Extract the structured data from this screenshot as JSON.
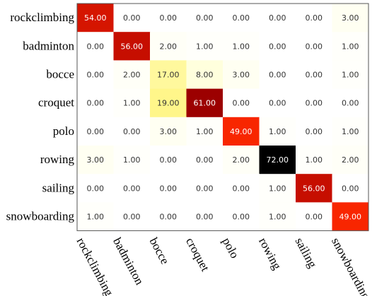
{
  "chart_data": {
    "type": "heatmap",
    "rows": [
      "rockclimbing",
      "badminton",
      "bocce",
      "croquet",
      "polo",
      "rowing",
      "sailing",
      "snowboarding"
    ],
    "columns": [
      "rockclimbing",
      "badminton",
      "bocce",
      "croquet",
      "polo",
      "rowing",
      "sailing",
      "snowboarding"
    ],
    "values": [
      [
        54,
        0,
        0,
        0,
        0,
        0,
        0,
        3
      ],
      [
        0,
        56,
        2,
        1,
        1,
        0,
        0,
        1
      ],
      [
        0,
        2,
        17,
        8,
        3,
        0,
        0,
        1
      ],
      [
        0,
        1,
        19,
        61,
        0,
        0,
        0,
        0
      ],
      [
        0,
        0,
        3,
        1,
        49,
        1,
        0,
        1
      ],
      [
        3,
        1,
        0,
        0,
        2,
        72,
        1,
        2
      ],
      [
        0,
        0,
        0,
        0,
        0,
        1,
        56,
        0
      ],
      [
        1,
        0,
        0,
        0,
        0,
        1,
        0,
        49
      ]
    ],
    "value_format": "0.00",
    "colormap": {
      "stops": [
        "#ffffff",
        "#ffffcc",
        "#ffef5a",
        "#ffff00",
        "#ff2a00",
        "#aa0000",
        "#000000"
      ],
      "range": [
        0,
        72
      ]
    },
    "title": "",
    "xlabel": "",
    "ylabel": ""
  }
}
